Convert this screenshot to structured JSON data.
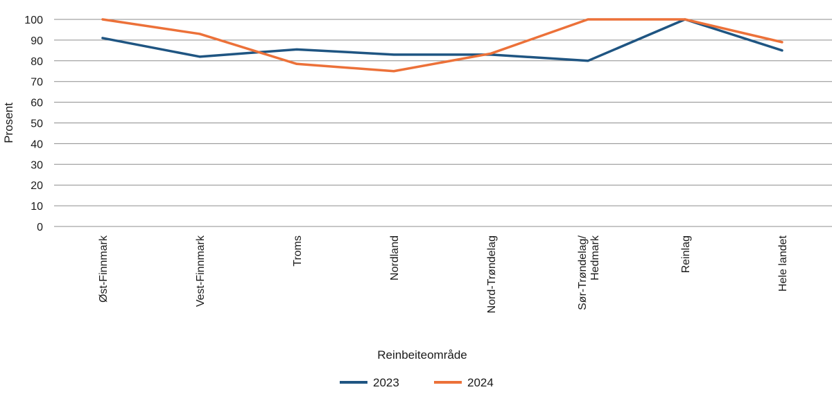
{
  "chart_data": {
    "type": "line",
    "title": "",
    "xlabel": "Reinbeiteområde",
    "ylabel": "Prosent",
    "ylim": [
      0,
      100
    ],
    "yticks": [
      0,
      10,
      20,
      30,
      40,
      50,
      60,
      70,
      80,
      90,
      100
    ],
    "grid": "horizontal",
    "legend_position": "bottom",
    "categories": [
      [
        "Øst-Finnmark"
      ],
      [
        "Vest-Finnmark"
      ],
      [
        "Troms"
      ],
      [
        "Nordland"
      ],
      [
        "Nord-Trøndelag"
      ],
      [
        "Sør-Trøndelag/",
        "Hedmark"
      ],
      [
        "Reinlag"
      ],
      [
        "Hele landet"
      ]
    ],
    "series": [
      {
        "name": "2023",
        "color": "#1f5582",
        "values": [
          91,
          82,
          85.5,
          83,
          83,
          80,
          100,
          85
        ]
      },
      {
        "name": "2024",
        "color": "#ec7139",
        "values": [
          100,
          93,
          78.5,
          75,
          83.5,
          100,
          100,
          89
        ]
      }
    ]
  }
}
